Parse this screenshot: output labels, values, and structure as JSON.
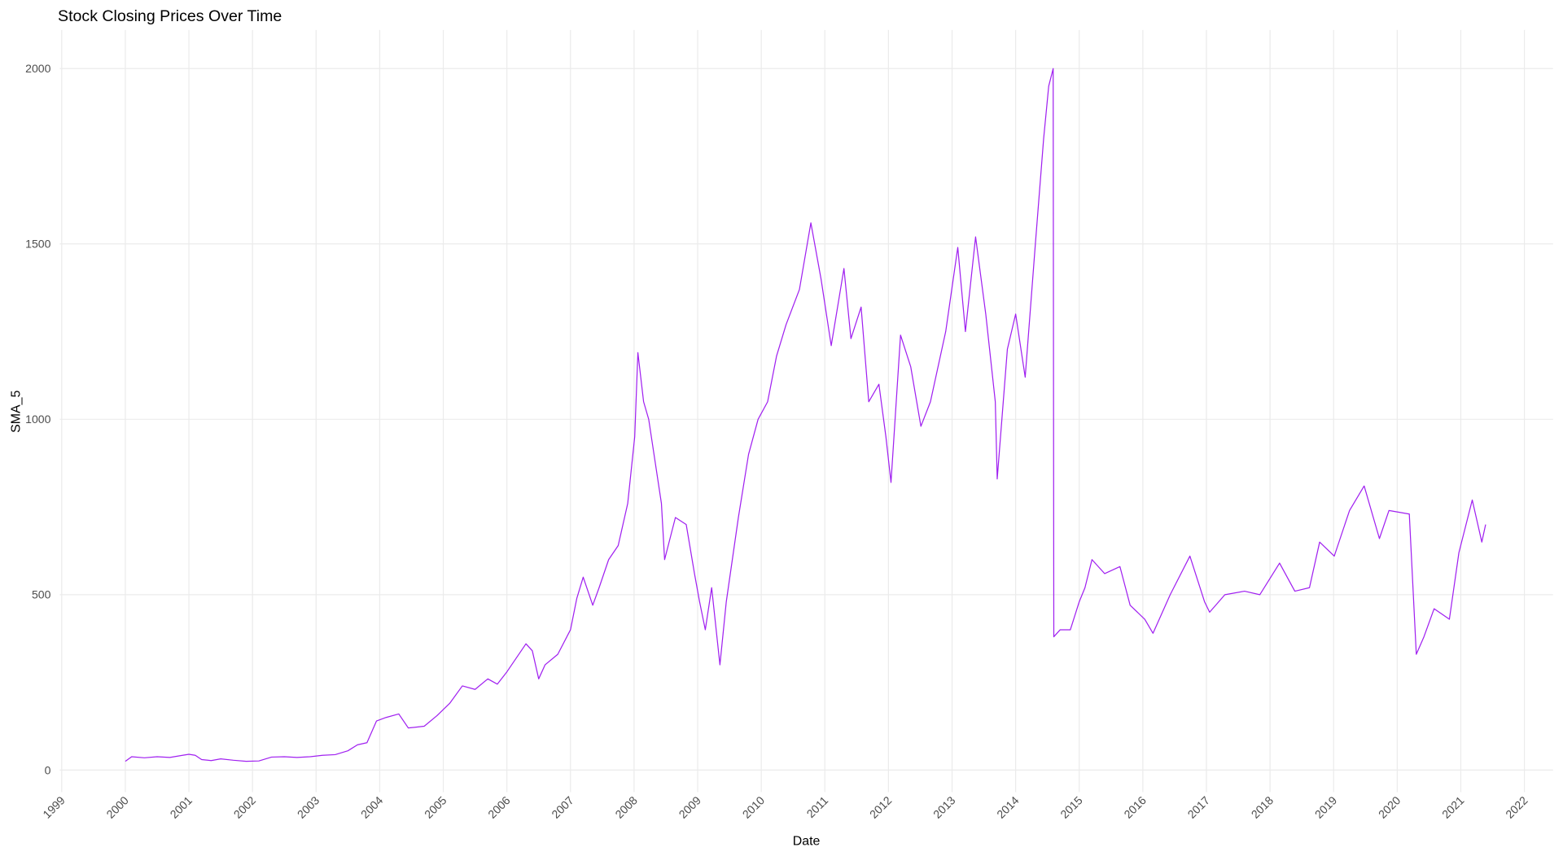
{
  "chart_data": {
    "type": "line",
    "title": "Stock Closing Prices Over Time",
    "x_label": "Date",
    "y_label": "SMA_5",
    "color": "#a020f0",
    "grid": true,
    "x": [
      2000.0,
      2000.1,
      2000.3,
      2000.5,
      2000.7,
      2000.9,
      2001.0,
      2001.1,
      2001.2,
      2001.35,
      2001.5,
      2001.7,
      2001.9,
      2002.1,
      2002.3,
      2002.5,
      2002.7,
      2002.9,
      2003.1,
      2003.3,
      2003.5,
      2003.65,
      2003.8,
      2003.95,
      2004.1,
      2004.3,
      2004.45,
      2004.7,
      2004.9,
      2005.1,
      2005.3,
      2005.5,
      2005.7,
      2005.85,
      2006.0,
      2006.15,
      2006.3,
      2006.4,
      2006.5,
      2006.6,
      2006.8,
      2007.0,
      2007.1,
      2007.2,
      2007.35,
      2007.45,
      2007.6,
      2007.75,
      2007.9,
      2008.01,
      2008.06,
      2008.15,
      2008.23,
      2008.43,
      2008.48,
      2008.65,
      2008.82,
      2008.95,
      2009.03,
      2009.12,
      2009.22,
      2009.35,
      2009.45,
      2009.64,
      2009.8,
      2009.95,
      2010.1,
      2010.24,
      2010.39,
      2010.6,
      2010.78,
      2010.94,
      2011.1,
      2011.3,
      2011.41,
      2011.57,
      2011.69,
      2011.85,
      2011.96,
      2012.04,
      2012.19,
      2012.35,
      2012.51,
      2012.66,
      2012.9,
      2013.09,
      2013.21,
      2013.37,
      2013.53,
      2013.68,
      2013.71,
      2013.87,
      2014.0,
      2014.15,
      2014.31,
      2014.44,
      2014.52,
      2014.59,
      2014.6,
      2014.7,
      2014.86,
      2015.0,
      2015.09,
      2015.2,
      2015.4,
      2015.64,
      2015.8,
      2016.03,
      2016.16,
      2016.43,
      2016.74,
      2016.97,
      2017.05,
      2017.29,
      2017.6,
      2017.84,
      2018.15,
      2018.39,
      2018.62,
      2018.78,
      2019.01,
      2019.25,
      2019.48,
      2019.72,
      2019.87,
      2020.19,
      2020.3,
      2020.42,
      2020.58,
      2020.82,
      2020.97,
      2021.18,
      2021.33,
      2021.39
    ],
    "values": [
      25,
      38,
      35,
      38,
      36,
      42,
      45,
      42,
      30,
      27,
      32,
      28,
      25,
      26,
      37,
      38,
      36,
      38,
      42,
      44,
      55,
      72,
      78,
      140,
      150,
      160,
      120,
      125,
      155,
      190,
      240,
      230,
      260,
      245,
      280,
      320,
      360,
      340,
      260,
      300,
      330,
      400,
      490,
      550,
      470,
      520,
      600,
      640,
      760,
      950,
      1190,
      1050,
      1000,
      760,
      600,
      720,
      700,
      560,
      480,
      400,
      520,
      300,
      480,
      720,
      900,
      1000,
      1050,
      1180,
      1270,
      1370,
      1560,
      1400,
      1210,
      1430,
      1230,
      1320,
      1050,
      1100,
      950,
      820,
      1240,
      1150,
      980,
      1050,
      1250,
      1490,
      1250,
      1520,
      1300,
      1050,
      830,
      1200,
      1300,
      1120,
      1500,
      1800,
      1950,
      2000,
      380,
      400,
      400,
      480,
      520,
      600,
      560,
      580,
      470,
      430,
      390,
      500,
      610,
      480,
      450,
      500,
      510,
      500,
      590,
      510,
      520,
      650,
      610,
      740,
      810,
      660,
      740,
      730,
      330,
      380,
      460,
      430,
      620,
      770,
      650,
      700
    ],
    "xlim": [
      1998.97,
      2022.45
    ],
    "ylim": [
      -63,
      2110
    ],
    "xticks": [
      1999,
      2000,
      2001,
      2002,
      2003,
      2004,
      2005,
      2006,
      2007,
      2008,
      2009,
      2010,
      2011,
      2012,
      2013,
      2014,
      2015,
      2016,
      2017,
      2018,
      2019,
      2020,
      2021,
      2022
    ],
    "yticks": [
      0,
      500,
      1000,
      1500,
      2000
    ]
  }
}
